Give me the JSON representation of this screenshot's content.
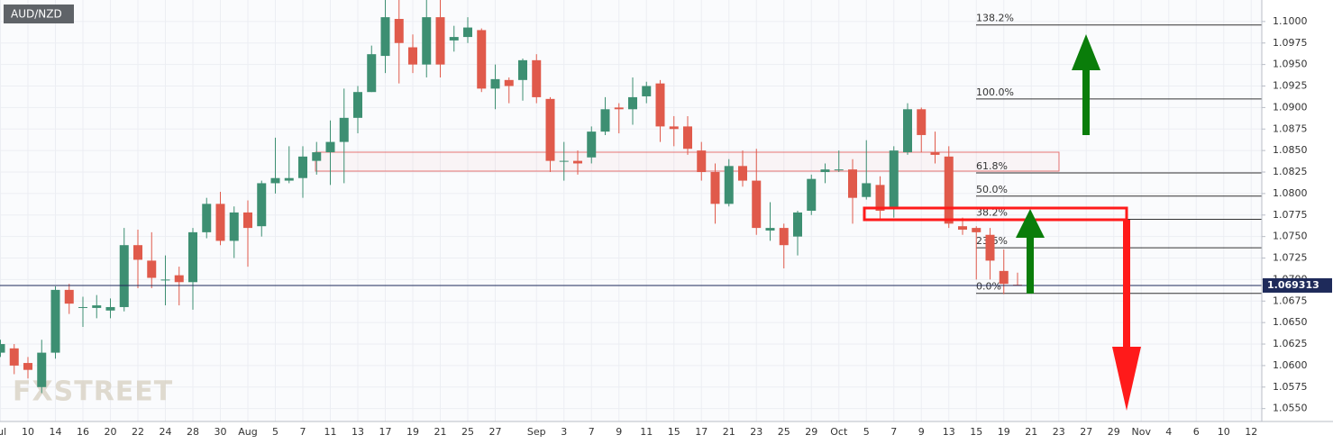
{
  "chart_data": {
    "type": "candlestick",
    "symbol": "AUD/NZD",
    "watermark": "FXSTREET",
    "categories": [
      "Jul",
      null,
      "10",
      null,
      "14",
      null,
      "16",
      null,
      "20",
      null,
      "22",
      null,
      "24",
      null,
      "28",
      null,
      "30",
      null,
      "Aug",
      null,
      "5",
      null,
      "7",
      null,
      "11",
      null,
      "13",
      null,
      "17",
      null,
      "19",
      null,
      "21",
      null,
      "25",
      null,
      "27",
      null,
      null,
      "Sep",
      null,
      "3",
      null,
      "7",
      null,
      "9",
      null,
      "11",
      null,
      "15",
      null,
      "17",
      null,
      "21",
      null,
      "23",
      null,
      "25",
      null,
      "29",
      null,
      "Oct",
      null,
      "5",
      null,
      "7",
      null,
      "9",
      null,
      "13",
      null,
      "15",
      null,
      "19",
      null,
      "21",
      null,
      "23",
      null,
      "27",
      null,
      "29",
      null,
      "Nov",
      null,
      "4",
      null,
      "6",
      null,
      "10",
      null,
      "12"
    ],
    "open": [
      1.0615,
      1.062,
      1.0603,
      1.0575,
      1.0615,
      1.0688,
      1.0668,
      1.0667,
      1.0664,
      1.0668,
      1.074,
      1.0722,
      1.07,
      1.0705,
      1.0697,
      1.0755,
      1.0788,
      1.0745,
      1.0778,
      1.0762,
      1.0812,
      1.0815,
      1.0818,
      1.0838,
      1.0848,
      1.086,
      1.0888,
      1.0918,
      1.096,
      1.1003,
      1.097,
      1.095,
      1.1005,
      1.0978,
      1.0982,
      1.099,
      1.0922,
      1.0932,
      1.0932,
      1.0955,
      1.091,
      1.0838,
      1.0838,
      1.0842,
      1.0872,
      1.09,
      1.0898,
      1.0913,
      1.0928,
      1.0878,
      1.0878,
      1.085,
      1.0825,
      1.0788,
      1.0832,
      1.0815,
      1.0757,
      1.076,
      1.075,
      1.078,
      1.0825,
      1.0828,
      1.0828,
      1.0796,
      1.081,
      1.0782,
      1.0848,
      1.0898,
      1.0848,
      1.0843,
      1.0762,
      1.076,
      1.0752,
      1.071,
      1.0694,
      null,
      null,
      null,
      null,
      null,
      null,
      null,
      null,
      null,
      null,
      null,
      null,
      null,
      null,
      null,
      null,
      null
    ],
    "high": [
      1.063,
      1.0625,
      1.061,
      1.063,
      1.0692,
      1.0695,
      1.068,
      1.0682,
      1.0678,
      1.076,
      1.0758,
      1.0755,
      1.0728,
      1.0715,
      1.076,
      1.0795,
      1.0802,
      1.0785,
      1.0792,
      1.0815,
      1.0865,
      1.0855,
      1.0855,
      1.086,
      1.0885,
      1.0922,
      1.0925,
      1.0972,
      1.1025,
      1.1025,
      1.0985,
      1.1025,
      1.1025,
      1.0995,
      1.1005,
      1.0992,
      1.095,
      1.0935,
      1.0957,
      1.0962,
      1.0912,
      1.086,
      1.085,
      1.0878,
      1.0912,
      1.0905,
      1.0935,
      1.093,
      1.0932,
      1.089,
      1.089,
      1.086,
      1.0835,
      1.084,
      1.085,
      1.0852,
      1.079,
      1.0765,
      1.078,
      1.0822,
      1.0835,
      1.085,
      1.084,
      1.0862,
      1.082,
      1.0855,
      1.0905,
      1.09,
      1.0872,
      1.0855,
      1.0772,
      1.0762,
      1.076,
      1.0735,
      1.0708,
      null,
      null,
      null,
      null,
      null,
      null,
      null,
      null,
      null,
      null,
      null,
      null,
      null,
      null,
      null,
      null,
      null
    ],
    "low": [
      1.061,
      1.059,
      1.0585,
      1.0568,
      1.0608,
      1.066,
      1.0645,
      1.0655,
      1.0655,
      1.0663,
      1.069,
      1.069,
      1.067,
      1.067,
      1.0665,
      1.0748,
      1.074,
      1.0725,
      1.0715,
      1.075,
      1.08,
      1.0812,
      1.0795,
      1.0822,
      1.081,
      1.0812,
      1.087,
      1.0918,
      1.094,
      1.0928,
      1.094,
      1.0935,
      1.0935,
      1.0965,
      1.0975,
      1.0918,
      1.0898,
      1.0905,
      1.0908,
      1.0905,
      1.0825,
      1.0815,
      1.0822,
      1.0835,
      1.0868,
      1.087,
      1.088,
      1.0905,
      1.086,
      1.0855,
      1.0845,
      1.0815,
      1.0765,
      1.0785,
      1.0808,
      1.0752,
      1.0745,
      1.0713,
      1.0728,
      1.0775,
      1.0812,
      1.0825,
      1.0765,
      1.0793,
      1.077,
      1.0772,
      1.0845,
      1.0848,
      1.0835,
      1.076,
      1.0752,
      1.07,
      1.07,
      1.0683,
      1.0693,
      null,
      null,
      null,
      null,
      null,
      null,
      null,
      null,
      null,
      null,
      null,
      null,
      null,
      null,
      null,
      null,
      null
    ],
    "close": [
      1.0625,
      1.06,
      1.0595,
      1.0615,
      1.0688,
      1.0672,
      1.0668,
      1.067,
      1.0668,
      1.074,
      1.0723,
      1.0702,
      1.07,
      1.0697,
      1.0755,
      1.0788,
      1.0745,
      1.0778,
      1.076,
      1.0812,
      1.0818,
      1.0818,
      1.0843,
      1.0848,
      1.086,
      1.0888,
      1.0918,
      1.0962,
      1.1005,
      1.0975,
      1.095,
      1.1005,
      1.095,
      1.0982,
      1.0993,
      1.0922,
      1.0933,
      1.0925,
      1.0955,
      1.0912,
      1.0838,
      1.0838,
      1.0835,
      1.0872,
      1.0898,
      1.0898,
      1.0912,
      1.0925,
      1.0878,
      1.0875,
      1.0852,
      1.0825,
      1.0788,
      1.0832,
      1.0815,
      1.076,
      1.076,
      1.074,
      1.0778,
      1.0817,
      1.0828,
      1.0828,
      1.0795,
      1.0812,
      1.078,
      1.085,
      1.0898,
      1.0868,
      1.0845,
      1.0765,
      1.0758,
      1.0755,
      1.0722,
      1.0695,
      1.069313,
      null,
      null,
      null,
      null,
      null,
      null,
      null,
      null,
      null,
      null,
      null,
      null,
      null,
      null,
      null,
      null,
      null
    ],
    "up_color": "#3d8f72",
    "down_color": "#e05a4b",
    "last_price": 1.069313,
    "last_price_color": "#1e2a5a",
    "ylim": [
      1.0535,
      1.1025
    ],
    "yticks": [
      {
        "value": 1.055,
        "label": "1.0550"
      },
      1.0575,
      {
        "value": 1.06,
        "label": "1.0600"
      },
      1.0625,
      {
        "value": 1.065,
        "label": "1.0650"
      },
      1.0675,
      {
        "value": 1.07,
        "label": "1.0700"
      },
      1.0725,
      {
        "value": 1.075,
        "label": "1.0750"
      },
      1.0775,
      {
        "value": 1.08,
        "label": "1.0800"
      },
      1.0825,
      {
        "value": 1.085,
        "label": "1.0850"
      },
      1.0875,
      {
        "value": 1.09,
        "label": "1.0900"
      },
      1.0925,
      {
        "value": 1.095,
        "label": "1.0950"
      },
      1.0975,
      {
        "value": 1.1,
        "label": "1.1000"
      }
    ],
    "grid": true,
    "fibonacci": [
      {
        "label": "138.2%",
        "value": 1.0996
      },
      {
        "label": "100.0%",
        "value": 1.091
      },
      {
        "label": "61.8%",
        "value": 1.0824
      },
      {
        "label": "50.0%",
        "value": 1.0797
      },
      {
        "label": "38.2%",
        "value": 1.077
      },
      {
        "label": "23.6%",
        "value": 1.0737
      },
      {
        "label": "0.0%",
        "value": 1.0684
      }
    ]
  }
}
